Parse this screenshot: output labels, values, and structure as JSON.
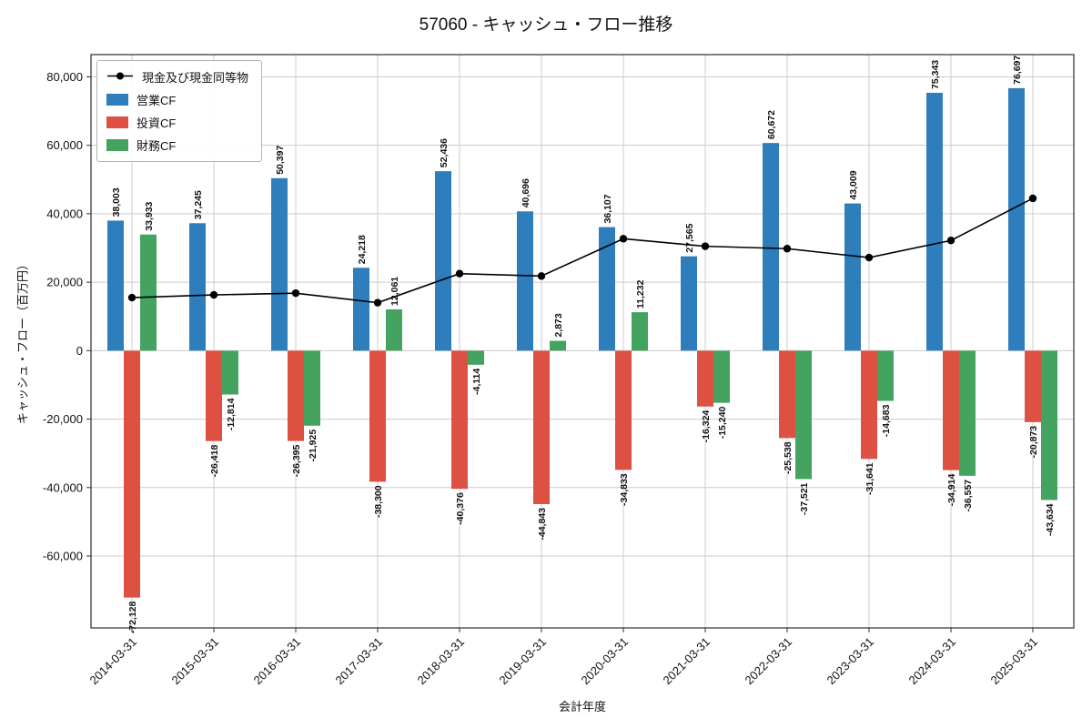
{
  "chart_data": {
    "type": "bar",
    "title": "57060 - キャッシュ・フロー推移",
    "xlabel": "会計年度",
    "ylabel": "キャッシュ・フロー（百万円）",
    "categories": [
      "2014-03-31",
      "2015-03-31",
      "2016-03-31",
      "2017-03-31",
      "2018-03-31",
      "2019-03-31",
      "2020-03-31",
      "2021-03-31",
      "2022-03-31",
      "2023-03-31",
      "2024-03-31",
      "2025-03-31"
    ],
    "series": [
      {
        "name": "営業CF",
        "color": "#2e7ebc",
        "values": [
          38003,
          37245,
          50397,
          24218,
          52436,
          40696,
          36107,
          27565,
          60672,
          43009,
          75343,
          76697
        ]
      },
      {
        "name": "投資CF",
        "color": "#de5142",
        "values": [
          -72128,
          -26418,
          -26395,
          -38300,
          -40376,
          -44843,
          -34833,
          -16324,
          -25538,
          -31641,
          -34914,
          -20873
        ]
      },
      {
        "name": "財務CF",
        "color": "#44a45f",
        "values": [
          33933,
          -12814,
          -21925,
          12061,
          -4114,
          2873,
          11232,
          -15240,
          -37521,
          -14683,
          -36557,
          -43634
        ]
      }
    ],
    "line_series": {
      "name": "現金及び現金同等物",
      "color": "#000000",
      "values": [
        15500,
        16300,
        16800,
        14000,
        22500,
        21800,
        32700,
        30500,
        29800,
        27200,
        32200,
        44500
      ]
    },
    "ylim": [
      -81000,
      86500
    ],
    "yticks": [
      -60000,
      -40000,
      -20000,
      0,
      20000,
      40000,
      60000,
      80000
    ],
    "grid": true,
    "legend_position": "upper-left"
  }
}
